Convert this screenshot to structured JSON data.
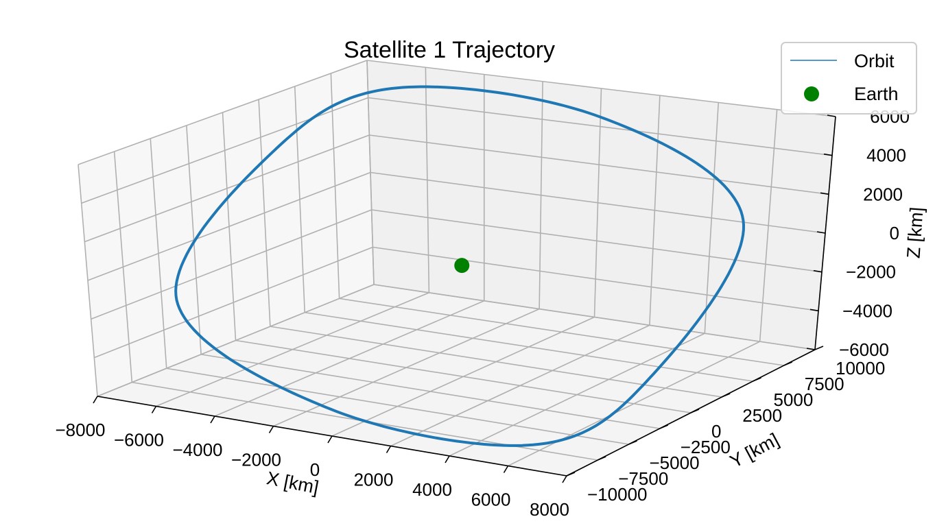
{
  "chart_data": {
    "type": "line",
    "projection": "3d",
    "title": "Satellite 1 Trajectory",
    "xlabel": "X [km]",
    "ylabel": "Y [km]",
    "zlabel": "Z [km]",
    "x_ticks": [
      "−8000",
      "−6000",
      "−4000",
      "−2000",
      "0",
      "2000",
      "4000",
      "6000",
      "8000"
    ],
    "y_ticks": [
      "−10000",
      "−7500",
      "−5000",
      "−2500",
      "0",
      "2500",
      "5000",
      "7500",
      "10000"
    ],
    "z_ticks": [
      "−6000",
      "−4000",
      "−2000",
      "0",
      "2000",
      "4000",
      "6000"
    ],
    "xlim": [
      -8000,
      8000
    ],
    "ylim": [
      -10000,
      10000
    ],
    "zlim": [
      -6000,
      6000
    ],
    "grid": true,
    "legend_position": "top-right",
    "series": [
      {
        "name": "Orbit",
        "kind": "line",
        "color": "#1f77b4",
        "description_points_xyz": [
          [
            -7500,
            2500,
            3500
          ],
          [
            -6000,
            8000,
            5500
          ],
          [
            0,
            10000,
            4500
          ],
          [
            6000,
            8000,
            1000
          ],
          [
            7500,
            -2500,
            -3500
          ],
          [
            6000,
            -8000,
            -5500
          ],
          [
            0,
            -10000,
            -4500
          ],
          [
            -6000,
            -8000,
            -1000
          ]
        ]
      },
      {
        "name": "Earth",
        "kind": "scatter",
        "color": "#008000",
        "points_xyz": [
          [
            0,
            0,
            0
          ]
        ]
      }
    ]
  }
}
